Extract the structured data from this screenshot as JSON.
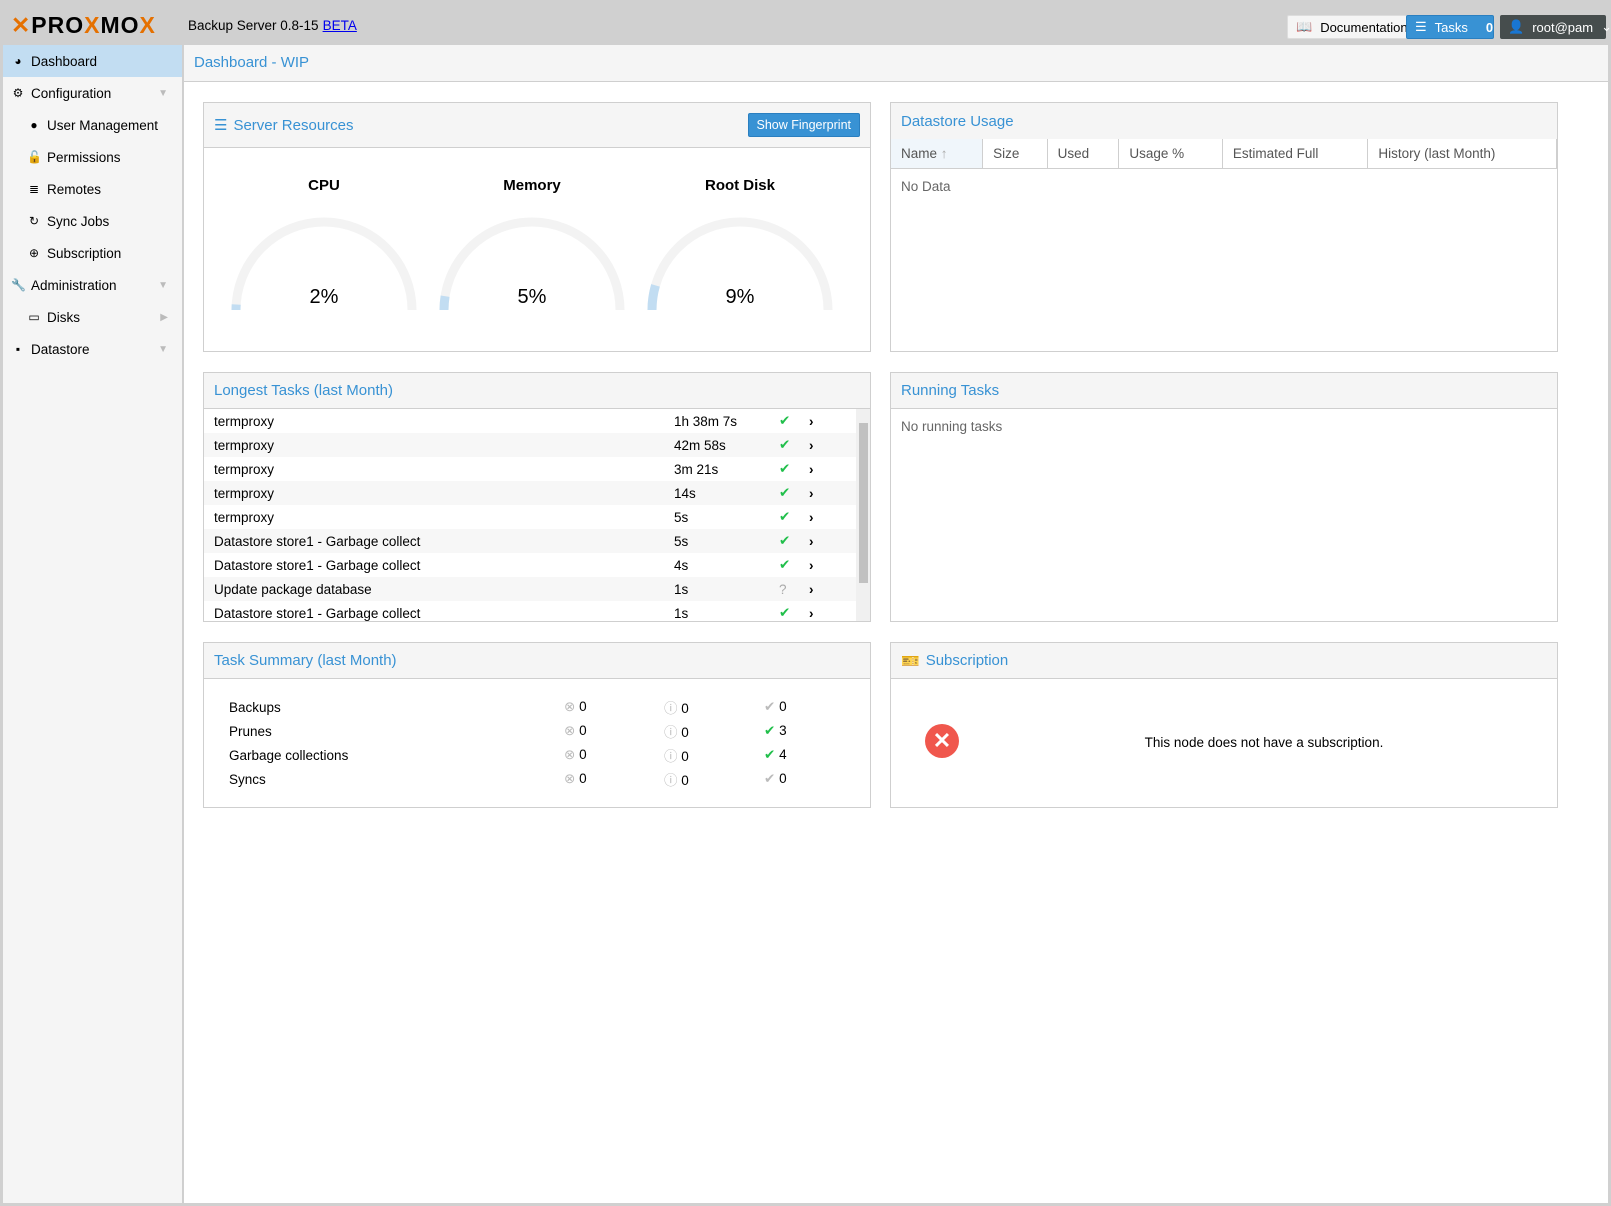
{
  "header": {
    "logo": "PROXMOX",
    "product": "Backup Server 0.8-15",
    "beta": "BETA",
    "documentation": "Documentation",
    "tasks_label": "Tasks",
    "tasks_count": "0",
    "user": "root@pam"
  },
  "sidebar": {
    "items": [
      {
        "label": "Dashboard",
        "icon": "tachometer-icon"
      },
      {
        "label": "Configuration",
        "icon": "gears-icon"
      },
      {
        "label": "User Management",
        "icon": "user-icon"
      },
      {
        "label": "Permissions",
        "icon": "unlock-icon"
      },
      {
        "label": "Remotes",
        "icon": "server-icon"
      },
      {
        "label": "Sync Jobs",
        "icon": "refresh-icon"
      },
      {
        "label": "Subscription",
        "icon": "support-icon"
      },
      {
        "label": "Administration",
        "icon": "wrench-icon"
      },
      {
        "label": "Disks",
        "icon": "hdd-icon"
      },
      {
        "label": "Datastore",
        "icon": "archive-icon"
      }
    ]
  },
  "page_title": "Dashboard - WIP",
  "server_resources": {
    "title": "Server Resources",
    "fingerprint_button": "Show Fingerprint",
    "gauges": [
      {
        "label": "CPU",
        "value": "2%",
        "fraction": 0.02
      },
      {
        "label": "Memory",
        "value": "5%",
        "fraction": 0.05
      },
      {
        "label": "Root Disk",
        "value": "9%",
        "fraction": 0.09
      }
    ]
  },
  "datastore_usage": {
    "title": "Datastore Usage",
    "columns": [
      "Name",
      "Size",
      "Used",
      "Usage %",
      "Estimated Full",
      "History (last Month)"
    ],
    "empty": "No Data"
  },
  "longest_tasks": {
    "title": "Longest Tasks (last Month)",
    "rows": [
      {
        "name": "termproxy",
        "duration": "1h 38m 7s",
        "status": "ok"
      },
      {
        "name": "termproxy",
        "duration": "42m 58s",
        "status": "ok"
      },
      {
        "name": "termproxy",
        "duration": "3m 21s",
        "status": "ok"
      },
      {
        "name": "termproxy",
        "duration": "14s",
        "status": "ok"
      },
      {
        "name": "termproxy",
        "duration": "5s",
        "status": "ok"
      },
      {
        "name": "Datastore store1 - Garbage collect",
        "duration": "5s",
        "status": "ok"
      },
      {
        "name": "Datastore store1 - Garbage collect",
        "duration": "4s",
        "status": "ok"
      },
      {
        "name": "Update package database",
        "duration": "1s",
        "status": "unknown"
      },
      {
        "name": "Datastore store1 - Garbage collect",
        "duration": "1s",
        "status": "ok"
      }
    ]
  },
  "running_tasks": {
    "title": "Running Tasks",
    "empty": "No running tasks"
  },
  "task_summary": {
    "title": "Task Summary (last Month)",
    "rows": [
      {
        "label": "Backups",
        "error": "0",
        "warning": "0",
        "ok": "0"
      },
      {
        "label": "Prunes",
        "error": "0",
        "warning": "0",
        "ok": "3"
      },
      {
        "label": "Garbage collections",
        "error": "0",
        "warning": "0",
        "ok": "4"
      },
      {
        "label": "Syncs",
        "error": "0",
        "warning": "0",
        "ok": "0"
      }
    ]
  },
  "subscription": {
    "title": "Subscription",
    "message": "This node does not have a subscription."
  }
}
